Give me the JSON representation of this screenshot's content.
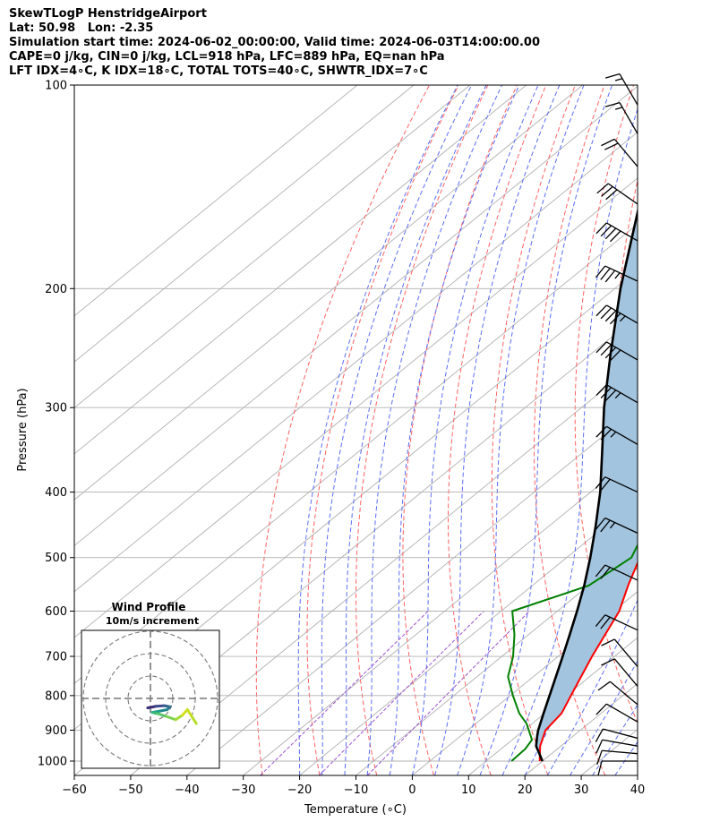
{
  "header": {
    "title": "SkewTLogP HenstridgeAirport",
    "location": "Lat: 50.98   Lon: -2.35",
    "times": "Simulation start time: 2024-06-02_00:00:00, Valid time: 2024-06-03T14:00:00.00",
    "indices1": "CAPE=0 j/kg, CIN=0 j/kg, LCL=918 hPa, LFC=889 hPa, EQ=nan hPa",
    "indices2": "LFT IDX=4∘C, K IDX=18∘C, TOTAL TOTS=40∘C, SHWTR_IDX=7∘C"
  },
  "chart_data": {
    "type": "skewt",
    "xlabel": "Temperature (∘C)",
    "ylabel": "Pressure (hPa)",
    "xlim": [
      -60,
      40
    ],
    "ylim": [
      1050,
      100
    ],
    "x_ticks": [
      "−60",
      "−50",
      "−40",
      "−30",
      "−20",
      "−10",
      "0",
      "10",
      "20",
      "30",
      "40"
    ],
    "y_ticks": [
      "100",
      "200",
      "300",
      "400",
      "500",
      "600",
      "700",
      "800",
      "900",
      "1000"
    ],
    "temperature_profile": [
      {
        "p": 1000,
        "t": 19.5
      },
      {
        "p": 950,
        "t": 16.3
      },
      {
        "p": 900,
        "t": 13.8
      },
      {
        "p": 850,
        "t": 13.0
      },
      {
        "p": 800,
        "t": 10.8
      },
      {
        "p": 700,
        "t": 6.0
      },
      {
        "p": 600,
        "t": 1.0
      },
      {
        "p": 550,
        "t": -3.0
      },
      {
        "p": 500,
        "t": -7.0
      },
      {
        "p": 450,
        "t": -12.0
      },
      {
        "p": 400,
        "t": -17.5
      },
      {
        "p": 350,
        "t": -24.0
      },
      {
        "p": 300,
        "t": -32.0
      },
      {
        "p": 270,
        "t": -38.0
      },
      {
        "p": 250,
        "t": -43.0
      },
      {
        "p": 220,
        "t": -50.0
      },
      {
        "p": 200,
        "t": -53.5
      },
      {
        "p": 180,
        "t": -54.5
      },
      {
        "p": 165,
        "t": -52.0
      },
      {
        "p": 150,
        "t": -50.5
      },
      {
        "p": 135,
        "t": -49.0
      },
      {
        "p": 120,
        "t": -48.5
      },
      {
        "p": 110,
        "t": -51.0
      },
      {
        "p": 100,
        "t": -53.0
      }
    ],
    "dewpoint_profile": [
      {
        "p": 1000,
        "t": 14.5
      },
      {
        "p": 960,
        "t": 14.3
      },
      {
        "p": 930,
        "t": 13.5
      },
      {
        "p": 880,
        "t": 9.0
      },
      {
        "p": 850,
        "t": 5.5
      },
      {
        "p": 800,
        "t": 0.5
      },
      {
        "p": 750,
        "t": -4.5
      },
      {
        "p": 700,
        "t": -8.0
      },
      {
        "p": 650,
        "t": -12.5
      },
      {
        "p": 600,
        "t": -18.0
      },
      {
        "p": 550,
        "t": -10.0
      },
      {
        "p": 500,
        "t": -8.5
      },
      {
        "p": 450,
        "t": -12.5
      },
      {
        "p": 400,
        "t": -19.0
      },
      {
        "p": 350,
        "t": -26.5
      },
      {
        "p": 300,
        "t": -36.0
      },
      {
        "p": 270,
        "t": -42.5
      },
      {
        "p": 240,
        "t": -51.0
      },
      {
        "p": 220,
        "t": -59.0
      },
      {
        "p": 200,
        "t": -64.0
      },
      {
        "p": 180,
        "t": -67.5
      },
      {
        "p": 165,
        "t": -67.0
      },
      {
        "p": 150,
        "t": -73.0
      },
      {
        "p": 135,
        "t": -80.0
      },
      {
        "p": 120,
        "t": -80.0
      },
      {
        "p": 110,
        "t": -77.5
      },
      {
        "p": 100,
        "t": -76.5
      }
    ],
    "parcel_profile": [
      {
        "p": 1000,
        "t": 20.0
      },
      {
        "p": 950,
        "t": 15.6
      },
      {
        "p": 918,
        "t": 13.6
      },
      {
        "p": 900,
        "t": 12.5
      },
      {
        "p": 850,
        "t": 9.8
      },
      {
        "p": 800,
        "t": 7.0
      },
      {
        "p": 750,
        "t": 4.0
      },
      {
        "p": 700,
        "t": 0.8
      },
      {
        "p": 650,
        "t": -2.7
      },
      {
        "p": 600,
        "t": -6.5
      },
      {
        "p": 550,
        "t": -10.8
      },
      {
        "p": 500,
        "t": -15.8
      },
      {
        "p": 450,
        "t": -21.6
      },
      {
        "p": 400,
        "t": -28.3
      },
      {
        "p": 350,
        "t": -36.5
      },
      {
        "p": 300,
        "t": -46.0
      },
      {
        "p": 250,
        "t": -56.5
      },
      {
        "p": 200,
        "t": -69.0
      },
      {
        "p": 150,
        "t": -84.0
      },
      {
        "p": 120,
        "t": -95.0
      },
      {
        "p": 100,
        "t": -103.0
      }
    ],
    "wind_barbs": [
      {
        "p": 1000,
        "speed_kt": 10,
        "dir": 270
      },
      {
        "p": 975,
        "speed_kt": 10,
        "dir": 275
      },
      {
        "p": 950,
        "speed_kt": 10,
        "dir": 280
      },
      {
        "p": 925,
        "speed_kt": 10,
        "dir": 285
      },
      {
        "p": 875,
        "speed_kt": 10,
        "dir": 300
      },
      {
        "p": 825,
        "speed_kt": 10,
        "dir": 310
      },
      {
        "p": 775,
        "speed_kt": 10,
        "dir": 320
      },
      {
        "p": 725,
        "speed_kt": 10,
        "dir": 320
      },
      {
        "p": 640,
        "speed_kt": 20,
        "dir": 295
      },
      {
        "p": 540,
        "speed_kt": 20,
        "dir": 295
      },
      {
        "p": 460,
        "speed_kt": 25,
        "dir": 295
      },
      {
        "p": 400,
        "speed_kt": 20,
        "dir": 295
      },
      {
        "p": 340,
        "speed_kt": 25,
        "dir": 300
      },
      {
        "p": 295,
        "speed_kt": 35,
        "dir": 300
      },
      {
        "p": 255,
        "speed_kt": 40,
        "dir": 300
      },
      {
        "p": 225,
        "speed_kt": 45,
        "dir": 300
      },
      {
        "p": 195,
        "speed_kt": 35,
        "dir": 295
      },
      {
        "p": 170,
        "speed_kt": 40,
        "dir": 300
      },
      {
        "p": 150,
        "speed_kt": 30,
        "dir": 305
      },
      {
        "p": 132,
        "speed_kt": 20,
        "dir": 320
      },
      {
        "p": 118,
        "speed_kt": 15,
        "dir": 330
      },
      {
        "p": 107,
        "speed_kt": 15,
        "dir": 330
      }
    ],
    "background_lines": {
      "isotherms": "grey",
      "dry_adiabats": "#ff0000",
      "moist_adiabats": "#0000ff",
      "mixing_ratio": "#800080"
    },
    "colors": {
      "temperature": "#ff0000",
      "dewpoint": "#008000",
      "parcel": "#000000",
      "cape_fill": "#a2c4de"
    },
    "hodograph": {
      "title": "Wind Profile",
      "subtitle": "10m/s increment",
      "rings": 3,
      "points_uv": [
        [
          -0.5,
          -1.7
        ],
        [
          1.0,
          -1.4
        ],
        [
          2.5,
          -1.3
        ],
        [
          3.5,
          -1.5
        ],
        [
          3.0,
          -2.0
        ],
        [
          1.5,
          -2.3
        ],
        [
          0.3,
          -2.5
        ],
        [
          1.2,
          -2.7
        ],
        [
          2.8,
          -3.2
        ],
        [
          4.5,
          -3.8
        ],
        [
          5.7,
          -3.0
        ],
        [
          6.6,
          -2.0
        ],
        [
          7.5,
          -3.4
        ],
        [
          8.2,
          -4.5
        ]
      ]
    }
  }
}
